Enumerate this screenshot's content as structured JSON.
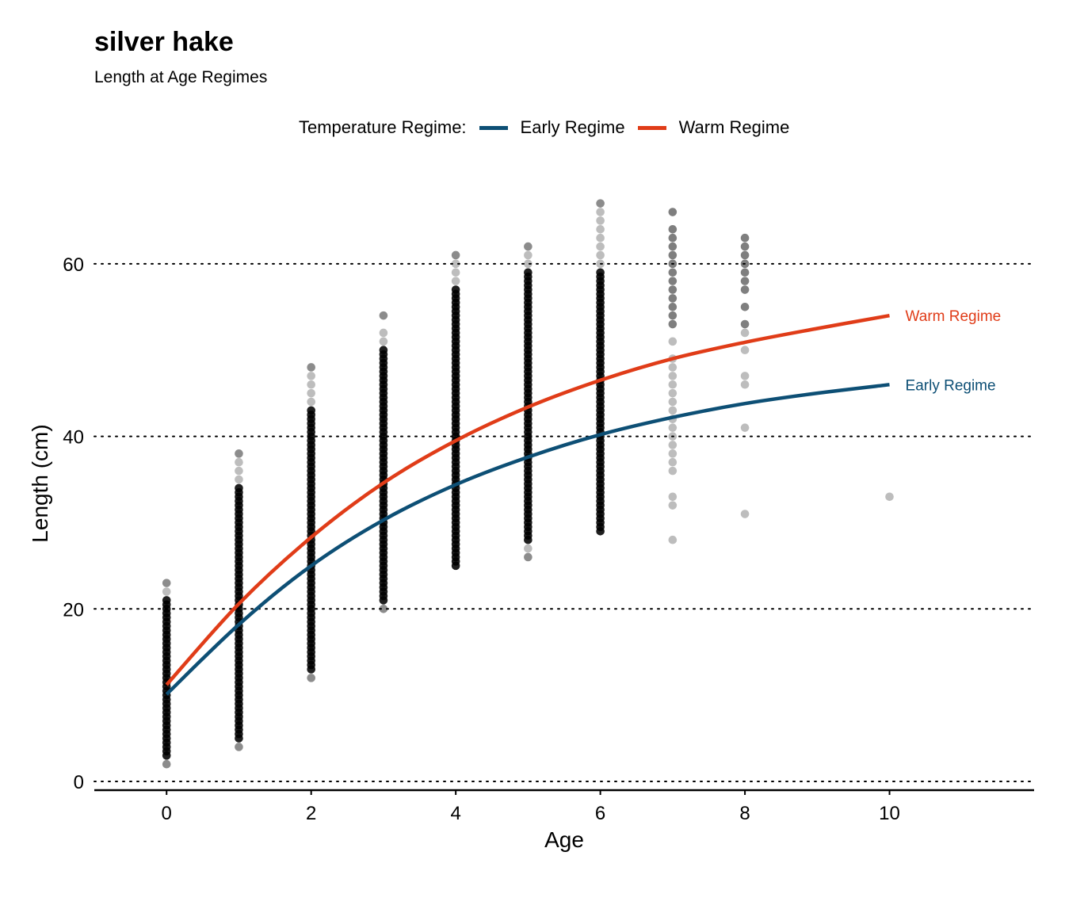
{
  "title": "silver hake",
  "subtitle": "Length at Age Regimes",
  "legend": {
    "title": "Temperature Regime:",
    "items": [
      {
        "label": "Early Regime",
        "color": "#0d4f75"
      },
      {
        "label": "Warm Regime",
        "color": "#e03c18"
      }
    ]
  },
  "chart_data": {
    "type": "scatter",
    "xlabel": "Age",
    "ylabel": "Length (cm)",
    "xlim": [
      -1,
      12
    ],
    "ylim": [
      0,
      70
    ],
    "x_ticks": [
      0,
      2,
      4,
      6,
      8,
      10
    ],
    "y_ticks": [
      0,
      20,
      40,
      60
    ],
    "grid": "horizontal dotted",
    "legend_position": "top",
    "point_color": "#000000",
    "columns": [
      {
        "age": 0,
        "min": 2,
        "max": 23,
        "strong_from": 3,
        "strong_to": 21,
        "extra": [
          2,
          22,
          23
        ]
      },
      {
        "age": 1,
        "min": 4,
        "max": 38,
        "strong_from": 5,
        "strong_to": 34,
        "extra": [
          4,
          35,
          36,
          37,
          38
        ]
      },
      {
        "age": 2,
        "min": 12,
        "max": 48,
        "strong_from": 13,
        "strong_to": 43,
        "extra": [
          12,
          44,
          45,
          46,
          47,
          48
        ]
      },
      {
        "age": 3,
        "min": 20,
        "max": 54,
        "strong_from": 21,
        "strong_to": 50,
        "extra": [
          20,
          51,
          52,
          54
        ]
      },
      {
        "age": 4,
        "min": 25,
        "max": 61,
        "strong_from": 25,
        "strong_to": 57,
        "extra": [
          58,
          59,
          60,
          61
        ]
      },
      {
        "age": 5,
        "min": 26,
        "max": 62,
        "strong_from": 28,
        "strong_to": 59,
        "extra": [
          26,
          27,
          60,
          61,
          62
        ]
      },
      {
        "age": 6,
        "min": 29,
        "max": 67,
        "strong_from": 29,
        "strong_to": 59,
        "extra": [
          60,
          61,
          62,
          63,
          64,
          65,
          66,
          67
        ]
      },
      {
        "age": 7,
        "min": 28,
        "max": 66,
        "strong_from": null,
        "strong_to": null,
        "extra": [
          28,
          32,
          33,
          36,
          37,
          38,
          39,
          40,
          41,
          42,
          43,
          44,
          45,
          46,
          47,
          48,
          49,
          51,
          53,
          54,
          55,
          56,
          57,
          58,
          59,
          60,
          61,
          62,
          63,
          64,
          66
        ]
      },
      {
        "age": 8,
        "min": 31,
        "max": 63,
        "strong_from": null,
        "strong_to": null,
        "extra": [
          31,
          41,
          46,
          47,
          50,
          52,
          53,
          55,
          57,
          58,
          59,
          60,
          61,
          62,
          63
        ]
      },
      {
        "age": 10,
        "min": 33,
        "max": 33,
        "strong_from": null,
        "strong_to": null,
        "extra": [
          33
        ]
      }
    ],
    "series": [
      {
        "name": "Early Regime",
        "color": "#0d4f75",
        "x": [
          0,
          1,
          2,
          3,
          4,
          5,
          6,
          7,
          8,
          9,
          10
        ],
        "y": [
          10.1,
          18.2,
          25.0,
          30.3,
          34.4,
          37.6,
          40.2,
          42.2,
          43.8,
          45.0,
          46.0
        ]
      },
      {
        "name": "Warm Regime",
        "color": "#e03c18",
        "x": [
          0,
          1,
          2,
          3,
          4,
          5,
          6,
          7,
          8,
          9,
          10
        ],
        "y": [
          11.2,
          20.6,
          28.3,
          34.6,
          39.5,
          43.4,
          46.5,
          49.0,
          50.9,
          52.5,
          54.0
        ]
      }
    ],
    "line_labels": [
      {
        "text": "Warm Regime",
        "color": "#e03c18"
      },
      {
        "text": "Early Regime",
        "color": "#0d4f75"
      }
    ]
  }
}
